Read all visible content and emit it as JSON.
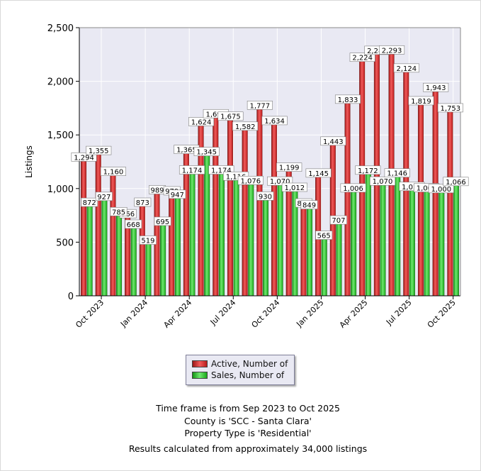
{
  "chart_data": {
    "type": "bar",
    "categories": [
      "Sep 2023",
      "Oct 2023",
      "Nov 2023",
      "Dec 2023",
      "Jan 2024",
      "Feb 2024",
      "Mar 2024",
      "Apr 2024",
      "May 2024",
      "Jun 2024",
      "Jul 2024",
      "Aug 2024",
      "Sep 2024",
      "Oct 2024",
      "Nov 2024",
      "Dec 2024",
      "Jan 2025",
      "Feb 2025",
      "Mar 2025",
      "Apr 2025",
      "May 2025",
      "Jun 2025",
      "Jul 2025",
      "Aug 2025",
      "Sep 2025",
      "Oct 2025"
    ],
    "x_tick_labels": [
      "Oct 2023",
      "Jan 2024",
      "Apr 2024",
      "Jul 2024",
      "Oct 2024",
      "Jan 2025",
      "Apr 2025",
      "Jul 2025",
      "Oct 2025"
    ],
    "x_tick_indices": [
      1,
      4,
      7,
      10,
      13,
      16,
      19,
      22,
      25
    ],
    "series": [
      {
        "name": "Active, Number of",
        "color": "#e02828",
        "values": [
          1294,
          1355,
          1160,
          766,
          873,
          989,
          979,
          1365,
          1624,
          1698,
          1675,
          1582,
          1777,
          1634,
          1199,
          866,
          1145,
          1443,
          1833,
          2224,
          2289,
          2293,
          2124,
          1819,
          1943,
          1753
        ],
        "labels": [
          "1,294",
          "1,355",
          "1,160",
          "766",
          "873",
          "989",
          "979",
          "1,365",
          "1,624",
          "1,698",
          "1,675",
          "1,582",
          "1,777",
          "1,634",
          "1,199",
          "866",
          "1,145",
          "1,443",
          "1,833",
          "2,224",
          "2,289",
          "2,293",
          "2,124",
          "1,819",
          "1,943",
          "1,753"
        ]
      },
      {
        "name": "Sales, Number of",
        "color": "#28c828",
        "values": [
          872,
          927,
          785,
          668,
          519,
          695,
          947,
          1174,
          1345,
          1174,
          1116,
          1076,
          930,
          1070,
          1012,
          849,
          565,
          707,
          1006,
          1172,
          1070,
          1146,
          1020,
          1008,
          1000,
          1066
        ],
        "labels": [
          "872",
          "927",
          "785",
          "668",
          "519",
          "695",
          "947",
          "1,174",
          "1,345",
          "1,174",
          "1,116",
          "1,076",
          "930",
          "1,070",
          "1,012",
          "849",
          "565",
          "707",
          "1,006",
          "1,172",
          "1,070",
          "1,146",
          "1,020",
          "1,008",
          "1,000",
          "1,066"
        ]
      }
    ],
    "ylabel": "Listings",
    "ylim": [
      0,
      2500
    ],
    "y_ticks": [
      0,
      500,
      1000,
      1500,
      2000,
      2500
    ],
    "y_tick_labels": [
      "0",
      "500",
      "1,000",
      "1,500",
      "2,000",
      "2,500"
    ],
    "grid": true,
    "legend_position": "bottom-center",
    "colors": {
      "plot_background": "#e9e9f3",
      "grid": "#ffffff",
      "axis": "#000000"
    }
  },
  "captions": {
    "line1": "Time frame is from Sep 2023 to Oct 2025",
    "line2": "County is 'SCC - Santa Clara'",
    "line3": "Property Type is 'Residential'",
    "line4": "Results calculated from approximately 34,000 listings"
  }
}
